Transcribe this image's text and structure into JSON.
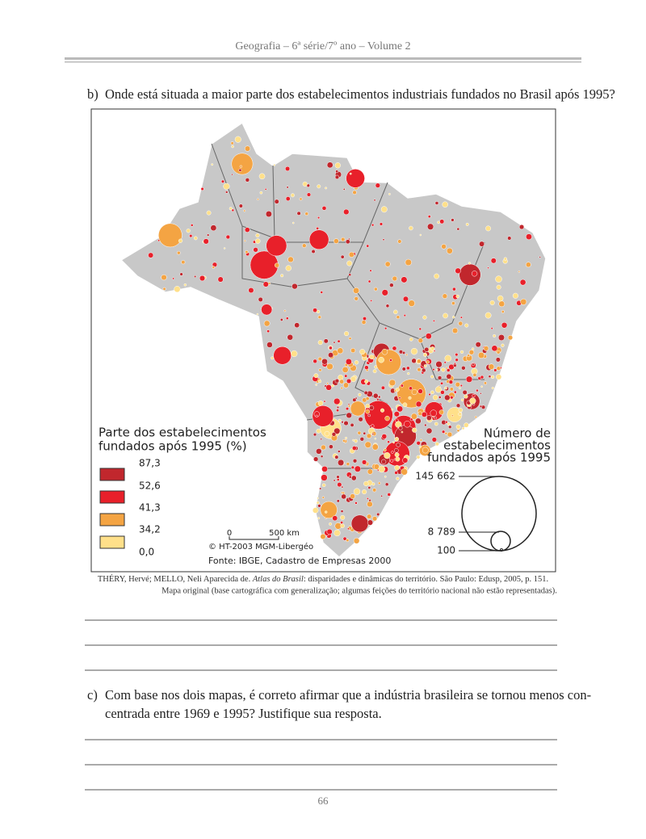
{
  "header": {
    "title": "Geografia – 6ª série/7º ano – Volume 2"
  },
  "question_b": {
    "label": "b)",
    "text": "Onde está situada a maior parte dos estabelecimentos industriais fundados no Brasil após 1995?"
  },
  "map": {
    "share_legend": {
      "title_lines": [
        "Parte dos estabelecimentos",
        "fundados após 1995 (%)"
      ],
      "breaks": [
        "87,3",
        "52,6",
        "41,3",
        "34,2",
        "0,0"
      ]
    },
    "size_legend": {
      "title_lines": [
        "Número de",
        "estabelecimentos",
        "fundados após 1995"
      ],
      "values": [
        "145 662",
        "8 789",
        "100"
      ]
    },
    "scale": {
      "start": "0",
      "end": "500 km"
    },
    "copyright": "© HT-2003 MGM-Libergéo",
    "source": "Fonte: IBGE, Cadastro de Empresas 2000"
  },
  "citation": {
    "authors": "THÉRY, Hervé; MELLO, Neli Aparecida de.",
    "work": "Atlas do Brasil",
    "rest": ": disparidades e dinâmicas do território. São Paulo: Edusp, 2005, p. 151.",
    "note": "Mapa original (base cartográfica com generalização; algumas feições do território nacional não estão representadas)."
  },
  "question_c": {
    "label": "c)",
    "lines": [
      "Com base nos dois mapas, é correto afirmar que a indústria brasileira se tornou menos con-",
      "centrada entre 1969 e 1995? Justifique sua resposta."
    ]
  },
  "footer": {
    "page_number": "66"
  }
}
